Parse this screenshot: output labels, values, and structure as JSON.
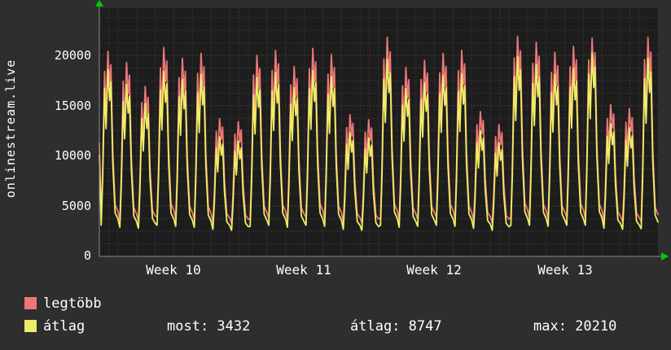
{
  "app": {
    "background": "#2e2e2e",
    "text_color": "#ffffff"
  },
  "chart_data": {
    "type": "line",
    "title": "",
    "ylabel": "onlinestream.live",
    "xlabel": "",
    "x_tick_labels": [
      "Week 10",
      "Week 11",
      "Week 12",
      "Week 13"
    ],
    "x_tick_days": [
      4,
      11,
      18,
      25
    ],
    "y_ticks": [
      0,
      5000,
      10000,
      15000,
      20000
    ],
    "ylim": [
      0,
      24700
    ],
    "days": 30,
    "week_grid_start_day": 0.5,
    "grid": {
      "on": true,
      "plot_bg": "#1d1d1d",
      "minor": "#2a2a2a",
      "major_h": "#3e3e3e",
      "major_v": "#5a2c2c"
    },
    "axis_color": "#8a8a8a",
    "arrow_color": "#00cc00",
    "legend_position": "bottom-left",
    "day_shape": [
      [
        0,
        0.04
      ],
      [
        0.1,
        0
      ],
      [
        0.18,
        0.3
      ],
      [
        0.28,
        0.88
      ],
      [
        0.36,
        0.62
      ],
      [
        0.46,
        1
      ],
      [
        0.55,
        0.8
      ],
      [
        0.62,
        0.92
      ],
      [
        0.72,
        0.4
      ],
      [
        0.85,
        0.08
      ],
      [
        1,
        0.04
      ]
    ],
    "lead_in_weight": 0.45,
    "series": [
      {
        "name": "legtöbb",
        "color": "#ee7777",
        "peaks": [
          20400,
          19300,
          16900,
          20800,
          19700,
          20200,
          13700,
          13400,
          20000,
          20500,
          18900,
          20700,
          20100,
          14100,
          13600,
          21800,
          18800,
          19500,
          20200,
          20500,
          14400,
          13100,
          21900,
          21300,
          20300,
          20900,
          21700,
          15100,
          14700,
          21800
        ],
        "troughs": [
          3800,
          3600,
          3500,
          3900,
          3700,
          3600,
          3400,
          3300,
          3700,
          3800,
          3600,
          3900,
          3700,
          3400,
          3300,
          3800,
          3600,
          3700,
          3900,
          3700,
          3500,
          3300,
          3900,
          3800,
          3700,
          3900,
          3800,
          3500,
          3400,
          3432
        ]
      },
      {
        "name": "átlag",
        "color": "#eeee66",
        "peaks": [
          18600,
          17100,
          15200,
          18400,
          17600,
          18100,
          11900,
          11500,
          17800,
          18300,
          16800,
          18500,
          17900,
          12300,
          11800,
          19600,
          16700,
          17300,
          18000,
          18200,
          12500,
          11300,
          19900,
          19100,
          18100,
          18700,
          20210,
          13200,
          12800,
          19700
        ],
        "troughs": [
          3100,
          2900,
          2800,
          3100,
          3000,
          2900,
          2700,
          2600,
          3000,
          3100,
          2900,
          3100,
          3000,
          2700,
          2600,
          3100,
          2900,
          3000,
          3100,
          3000,
          2800,
          2600,
          3100,
          3100,
          3000,
          3100,
          3100,
          2800,
          2700,
          2750
        ]
      }
    ],
    "stats": {
      "most": 3432,
      "atlag": 8747,
      "max": 20210
    },
    "legend_stats": [
      "most: 3432",
      "átlag: 8747",
      "max: 20210"
    ]
  }
}
